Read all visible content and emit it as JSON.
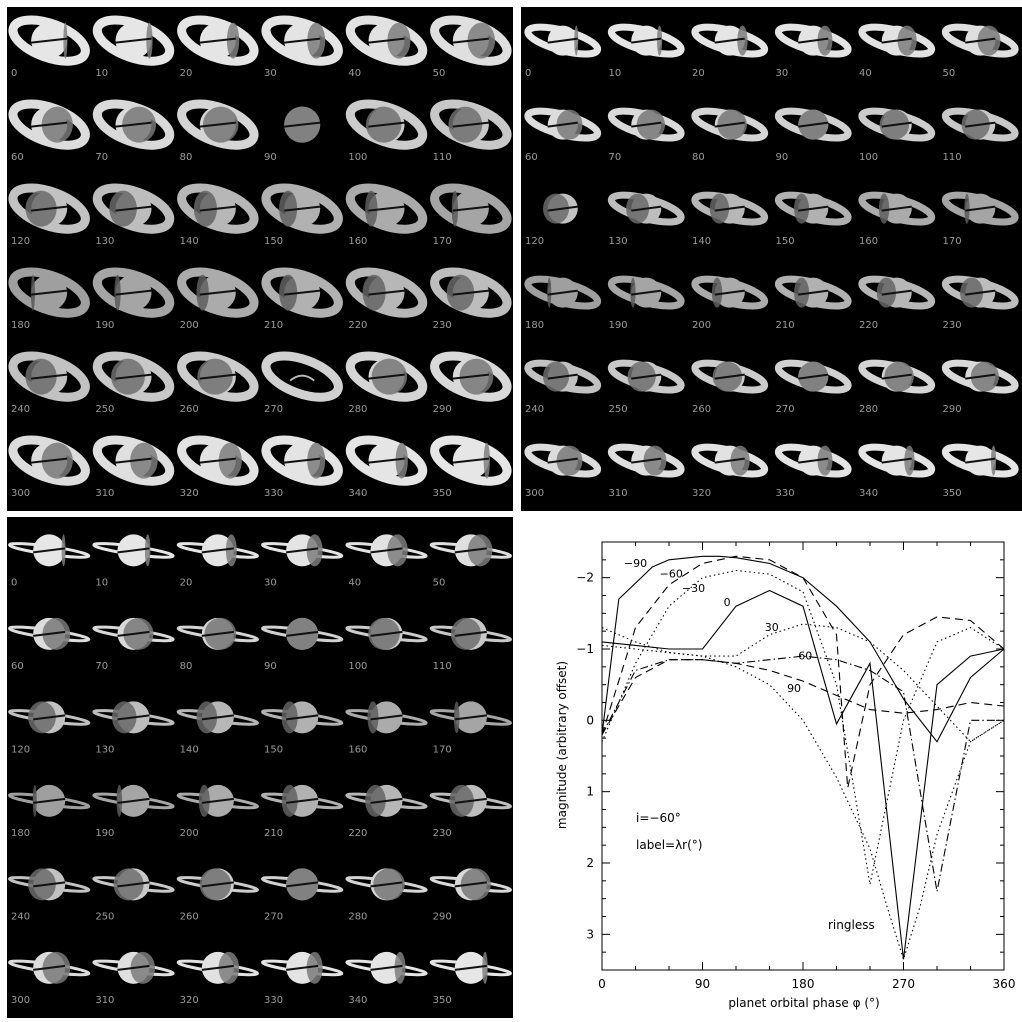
{
  "panels": [
    {
      "phases": [
        "0",
        "10",
        "20",
        "30",
        "40",
        "50",
        "60",
        "70",
        "80",
        "90",
        "100",
        "110",
        "120",
        "130",
        "140",
        "150",
        "160",
        "170",
        "180",
        "190",
        "200",
        "210",
        "220",
        "230",
        "240",
        "250",
        "260",
        "270",
        "280",
        "290",
        "300",
        "310",
        "320",
        "330",
        "340",
        "350"
      ]
    },
    {
      "phases": [
        "0",
        "10",
        "20",
        "30",
        "40",
        "50",
        "60",
        "70",
        "80",
        "90",
        "100",
        "110",
        "120",
        "130",
        "140",
        "150",
        "160",
        "170",
        "180",
        "190",
        "200",
        "210",
        "220",
        "230",
        "240",
        "250",
        "260",
        "270",
        "280",
        "290",
        "300",
        "310",
        "320",
        "330",
        "340",
        "350"
      ]
    },
    {
      "phases": [
        "0",
        "10",
        "20",
        "30",
        "40",
        "50",
        "60",
        "70",
        "80",
        "90",
        "100",
        "110",
        "120",
        "130",
        "140",
        "150",
        "160",
        "170",
        "180",
        "190",
        "200",
        "210",
        "220",
        "230",
        "240",
        "250",
        "260",
        "270",
        "280",
        "290",
        "300",
        "310",
        "320",
        "330",
        "340",
        "350"
      ]
    }
  ],
  "chart_data": {
    "type": "line",
    "xlabel": "planet orbital phase φ (°)",
    "ylabel": "magnitude (arbitrary offset)",
    "xlim": [
      0,
      360
    ],
    "ylim": [
      3.5,
      -2.5
    ],
    "xticks": [
      0,
      90,
      180,
      270,
      360
    ],
    "yticks": [
      -2,
      -1,
      0,
      1,
      2,
      3
    ],
    "annotation_i": "i=−60°",
    "annotation_label": "label=λr(°)",
    "annotation_ringless": "ringless",
    "series": [
      {
        "name": "-90",
        "style": "solid",
        "x": [
          0,
          15,
          45,
          60,
          90,
          105,
          120,
          150,
          180,
          210,
          240,
          270,
          300,
          330,
          360
        ],
        "y": [
          0.2,
          -1.7,
          -2.15,
          -2.25,
          -2.3,
          -2.3,
          -2.28,
          -2.2,
          -2.0,
          -1.6,
          -1.1,
          -0.3,
          0.3,
          -0.6,
          -1.0
        ]
      },
      {
        "name": "-60",
        "style": "dashed",
        "x": [
          0,
          30,
          60,
          90,
          120,
          150,
          180,
          210,
          220,
          240,
          270,
          300,
          330,
          360
        ],
        "y": [
          0.2,
          -1.3,
          -1.9,
          -2.2,
          -2.3,
          -2.25,
          -2.0,
          -1.2,
          0.95,
          -0.5,
          -1.2,
          -1.45,
          -1.4,
          -1.0
        ]
      },
      {
        "name": "-30",
        "style": "dotted",
        "x": [
          0,
          30,
          60,
          90,
          120,
          150,
          180,
          210,
          240,
          270,
          300,
          330,
          360
        ],
        "y": [
          0.3,
          -0.8,
          -1.6,
          -2.0,
          -2.1,
          -2.05,
          -1.8,
          -0.5,
          2.3,
          0.0,
          -1.1,
          -1.3,
          -1.0
        ]
      },
      {
        "name": "0",
        "style": "solid",
        "x": [
          0,
          30,
          60,
          90,
          120,
          150,
          180,
          210,
          240,
          270,
          300,
          330,
          360
        ],
        "y": [
          -1.1,
          -1.05,
          -1.0,
          -1.0,
          -1.6,
          -1.82,
          -1.6,
          0.05,
          -0.8,
          3.35,
          -0.5,
          -0.9,
          -1.0
        ]
      },
      {
        "name": "30",
        "style": "dotted",
        "x": [
          0,
          30,
          60,
          90,
          120,
          150,
          180,
          210,
          240,
          270,
          300,
          330,
          360
        ],
        "y": [
          -1.3,
          -1.1,
          -0.95,
          -0.9,
          -0.9,
          -1.2,
          -1.35,
          -1.3,
          -1.1,
          -0.7,
          -0.2,
          0.3,
          0.0
        ]
      },
      {
        "name": "60",
        "style": "dashdot",
        "x": [
          0,
          30,
          60,
          90,
          120,
          150,
          180,
          210,
          240,
          270,
          300,
          330,
          360
        ],
        "y": [
          0.2,
          -0.7,
          -0.85,
          -0.85,
          -0.8,
          -0.85,
          -0.9,
          -0.85,
          -0.7,
          -0.4,
          2.4,
          0.0,
          0.0
        ]
      },
      {
        "name": "90",
        "style": "dashed",
        "x": [
          0,
          30,
          60,
          90,
          120,
          150,
          180,
          210,
          240,
          270,
          300,
          330,
          360
        ],
        "y": [
          0.2,
          -0.6,
          -0.85,
          -0.85,
          -0.8,
          -0.7,
          -0.55,
          -0.35,
          -0.15,
          -0.1,
          -0.15,
          -0.25,
          -0.2
        ]
      },
      {
        "name": "ringless",
        "style": "dotted",
        "x": [
          0,
          30,
          60,
          90,
          120,
          150,
          180,
          210,
          240,
          255,
          270,
          285,
          300,
          330,
          360
        ],
        "y": [
          -1.05,
          -1.0,
          -0.95,
          -0.9,
          -0.75,
          -0.5,
          0.0,
          0.8,
          1.8,
          2.6,
          3.35,
          2.6,
          1.6,
          0.3,
          0.0
        ]
      }
    ]
  }
}
